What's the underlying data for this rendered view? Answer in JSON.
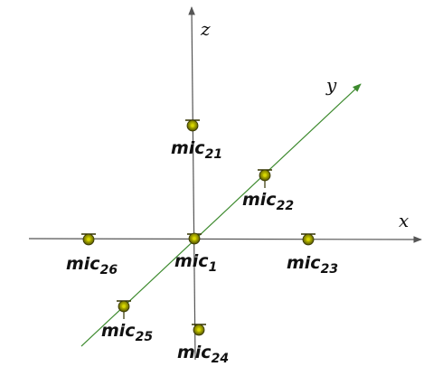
{
  "axes": {
    "x": {
      "label": "x"
    },
    "y": {
      "label": "y"
    },
    "z": {
      "label": "z"
    }
  },
  "mic_prefix": "mic",
  "mics": [
    {
      "id": "mic1",
      "subscript": "1"
    },
    {
      "id": "mic21",
      "subscript": "21"
    },
    {
      "id": "mic22",
      "subscript": "22"
    },
    {
      "id": "mic23",
      "subscript": "23"
    },
    {
      "id": "mic24",
      "subscript": "24"
    },
    {
      "id": "mic25",
      "subscript": "25"
    },
    {
      "id": "mic26",
      "subscript": "26"
    }
  ],
  "colors": {
    "axis": "#555555",
    "y_axis": "#3d8a2e",
    "mic_fill": "#8a8a00",
    "mic_center": "#c8c800",
    "mic_outline": "#333300",
    "text": "#111111"
  }
}
